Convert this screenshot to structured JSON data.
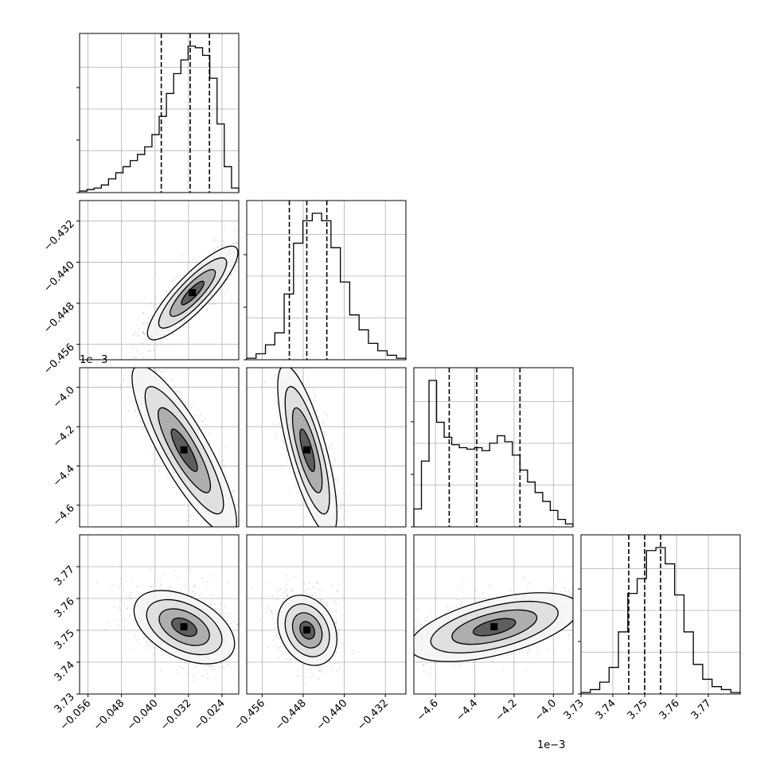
{
  "chart_data": {
    "type": "corner",
    "grid": true,
    "params": [
      {
        "range": [
          -0.058,
          -0.02
        ],
        "ticks": [
          -0.056,
          -0.048,
          -0.04,
          -0.032,
          -0.024
        ],
        "tick_labels": [
          "−0.056",
          "−0.048",
          "−0.040",
          "−0.032",
          "−0.024"
        ],
        "quantiles": [
          -0.0385,
          -0.0316,
          -0.027
        ]
      },
      {
        "range": [
          -0.459,
          -0.428
        ],
        "ticks": [
          -0.456,
          -0.448,
          -0.44,
          -0.432
        ],
        "tick_labels": [
          "−0.456",
          "−0.448",
          "−0.440",
          "−0.432"
        ],
        "quantiles": [
          -0.4507,
          -0.4473,
          -0.4434
        ]
      },
      {
        "range": [
          -0.00471,
          -0.0039
        ],
        "ticks": [
          -0.0046,
          -0.0044,
          -0.0042,
          -0.004
        ],
        "tick_labels": [
          "−4.6",
          "−4.4",
          "−4.2",
          "−4.0"
        ],
        "offset_label": "1e−3",
        "quantiles": [
          -0.00453,
          -0.00439,
          -0.00417
        ]
      },
      {
        "range": [
          0.00373,
          0.00378
        ],
        "ticks": [
          0.00373,
          0.00374,
          0.00375,
          0.00376,
          0.00377
        ],
        "tick_labels": [
          "3.73",
          "3.74",
          "3.75",
          "3.76",
          "3.77"
        ],
        "offset_label": "1e−3",
        "quantiles": [
          0.003745,
          0.00375,
          0.003755
        ]
      }
    ],
    "histograms": [
      [
        1,
        2,
        3,
        5,
        9,
        13,
        17,
        21,
        25,
        30,
        38,
        50,
        65,
        78,
        87,
        96,
        95,
        90,
        75,
        45,
        17,
        3
      ],
      [
        1,
        4,
        10,
        18,
        44,
        78,
        93,
        98,
        93,
        75,
        52,
        30,
        20,
        11,
        6,
        3,
        1
      ],
      [
        12,
        44,
        98,
        70,
        60,
        55,
        53,
        52,
        53,
        51,
        56,
        61,
        57,
        48,
        38,
        30,
        23,
        17,
        11,
        5,
        2
      ],
      [
        1,
        3,
        8,
        18,
        42,
        68,
        78,
        97,
        99,
        88,
        67,
        42,
        20,
        10,
        5,
        3,
        1
      ]
    ],
    "pairs": [
      {
        "row": 1,
        "col": 0,
        "mean": [
          -0.031,
          -0.446
        ],
        "sigma": [
          0.0045,
          0.0038
        ],
        "rho": 0.86
      },
      {
        "row": 2,
        "col": 0,
        "mean": [
          -0.033,
          -0.00432
        ],
        "sigma": [
          0.0052,
          0.00018
        ],
        "rho": -0.85
      },
      {
        "row": 2,
        "col": 1,
        "mean": [
          -0.4472,
          -0.00432
        ],
        "sigma": [
          0.0024,
          0.00018
        ],
        "rho": -0.75
      },
      {
        "row": 3,
        "col": 0,
        "mean": [
          -0.033,
          0.003751
        ],
        "sigma": [
          0.005,
          4.8e-06
        ],
        "rho": -0.45
      },
      {
        "row": 3,
        "col": 1,
        "mean": [
          -0.4472,
          0.00375
        ],
        "sigma": [
          0.0024,
          4.6e-06
        ],
        "rho": -0.25
      },
      {
        "row": 3,
        "col": 2,
        "mean": [
          -0.0043,
          0.003751
        ],
        "sigma": [
          0.00018,
          4.5e-06
        ],
        "rho": 0.55
      }
    ]
  }
}
